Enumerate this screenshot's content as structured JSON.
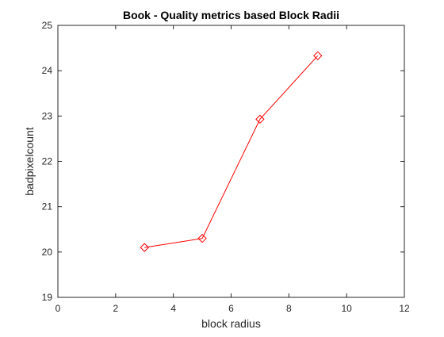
{
  "chart_data": {
    "type": "line",
    "title": "Book - Quality metrics based Block Radii",
    "xlabel": "block radius",
    "ylabel": "badpixelcount",
    "xlim": [
      0,
      12
    ],
    "ylim": [
      19,
      25
    ],
    "xticks": [
      0,
      2,
      4,
      6,
      8,
      10,
      12
    ],
    "yticks": [
      19,
      20,
      21,
      22,
      23,
      24,
      25
    ],
    "grid": false,
    "marker": "diamond",
    "series": [
      {
        "x": [
          3,
          5,
          7,
          9
        ],
        "values": [
          20.1,
          20.3,
          22.93,
          24.33
        ],
        "color": "#ff0000"
      }
    ]
  }
}
